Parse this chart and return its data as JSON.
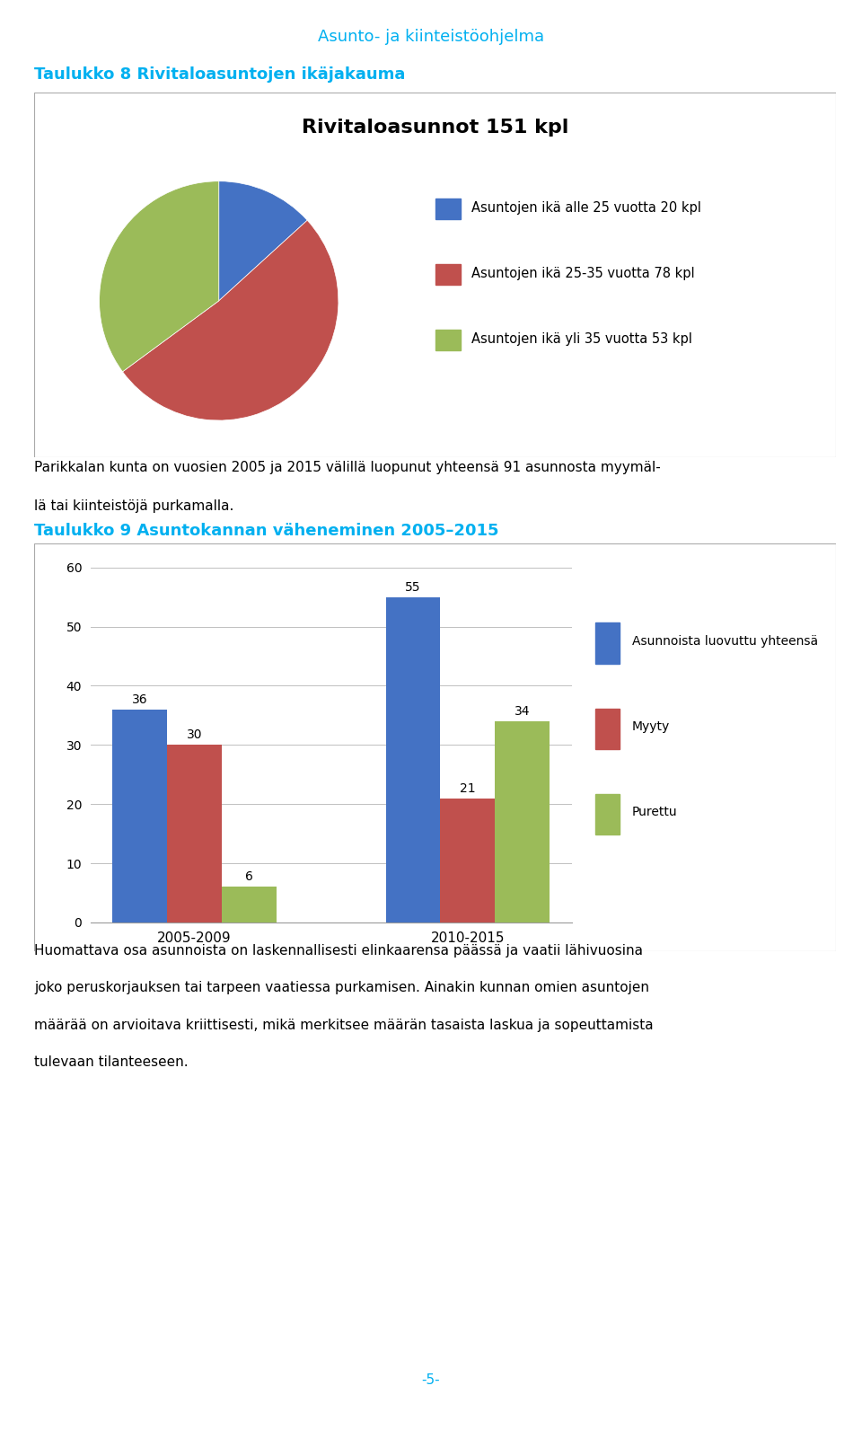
{
  "page_title": "Asunto- ja kiinteistöohjelma",
  "section1_title": "Taulukko 8 Rivitaloasuntojen ikäjakauma",
  "pie_title": "Rivitaloasunnot 151 kpl",
  "pie_values": [
    20,
    78,
    53
  ],
  "pie_colors": [
    "#4472C4",
    "#C0504D",
    "#9BBB59"
  ],
  "pie_labels": [
    "Asuntojen ikä alle 25 vuotta 20 kpl",
    "Asuntojen ikä 25-35 vuotta 78 kpl",
    "Asuntojen ikä yli 35 vuotta 53 kpl"
  ],
  "text1_line1": "Parikkalan kunta on vuosien 2005 ja 2015 välillä luopunut yhteensä 91 asunnosta myymäl-",
  "text1_line2": "lä tai kiinteistöjä purkamalla.",
  "section2_title": "Taulukko 9 Asuntokannan väheneminen 2005–2015",
  "bar_categories": [
    "2005-2009",
    "2010-2015"
  ],
  "bar_series": {
    "Asunnoista luovuttu yhteensä": [
      36,
      55
    ],
    "Myyty": [
      30,
      21
    ],
    "Purettu": [
      6,
      34
    ]
  },
  "bar_colors": {
    "Asunnoista luovuttu yhteensä": "#4472C4",
    "Myyty": "#C0504D",
    "Purettu": "#9BBB59"
  },
  "bar_ylim": [
    0,
    62
  ],
  "bar_yticks": [
    0,
    10,
    20,
    30,
    40,
    50,
    60
  ],
  "text2_lines": [
    "Huomattava osa asunnoista on laskennallisesti elinkaarensa päässä ja vaatii lähivuosina",
    "joko peruskorjauksen tai tarpeen vaatiessa purkamisen. Ainakin kunnan omien asuntojen",
    "määrää on arvioitava kriittisesti, mikä merkitsee määrän tasaista laskua ja sopeuttamista",
    "tulevaan tilanteeseen."
  ],
  "page_number": "-5-",
  "cyan_color": "#00B0F0",
  "grid_color": "#C0C0C0",
  "border_color": "#AAAAAA"
}
